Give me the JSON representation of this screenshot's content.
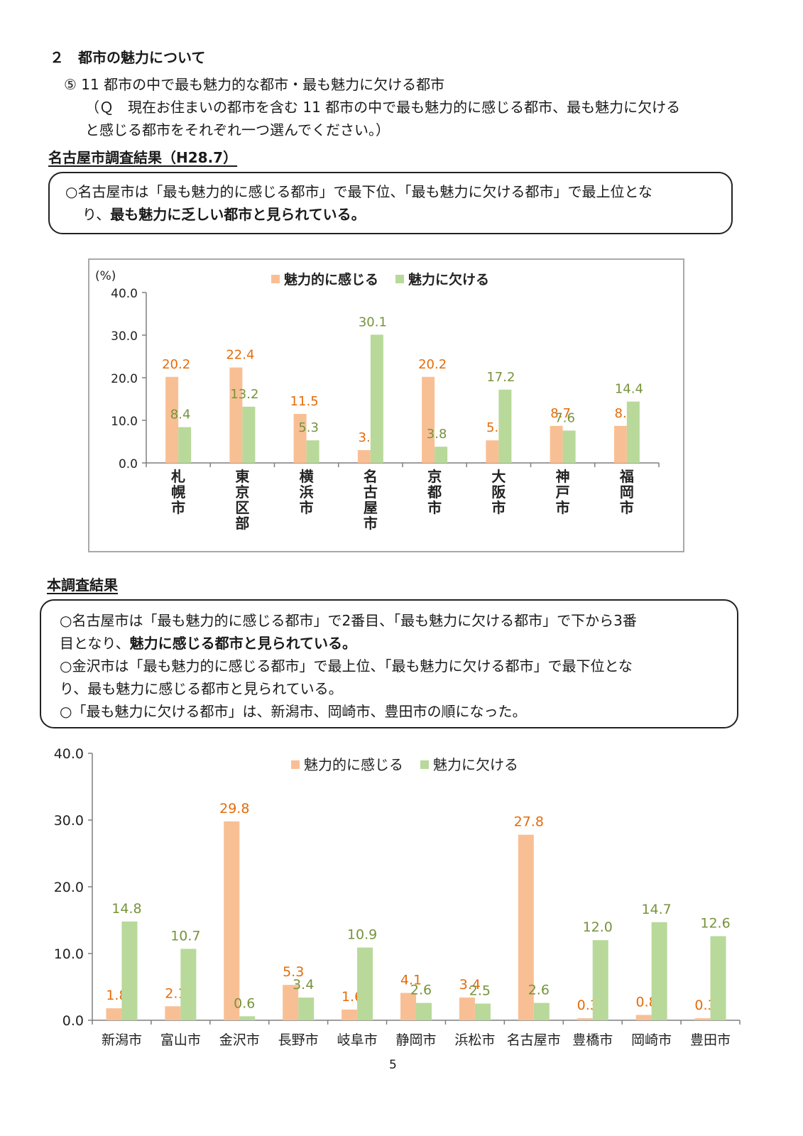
{
  "section": {
    "heading": "２　都市の魅力について",
    "question_title": "⑤ 11 都市の中で最も魅力的な都市・最も魅力に欠ける都市",
    "question_line1": "（Ｑ　現在お住まいの都市を含む 11 都市の中で最も魅力的に感じる都市、最も魅力に欠ける",
    "question_line2": "と感じる都市をそれぞれ一つ選んでください。）"
  },
  "nagoya_survey": {
    "title": "名古屋市調査結果（H28.7）",
    "summary_line1": "○名古屋市は「最も魅力的に感じる都市」で最下位、「最も魅力に欠ける都市」で最上位とな",
    "summary_line2_prefix": "り、",
    "summary_line2_bold": "最も魅力に乏しい都市と見られている。"
  },
  "this_survey": {
    "title": "本調査結果",
    "line1": "○名古屋市は「最も魅力的に感じる都市」で2番目、「最も魅力に欠ける都市」で下から3番",
    "line2_prefix": "目となり、",
    "line2_bold": "魅力に感じる都市と見られている。",
    "line3": "○金沢市は「最も魅力的に感じる都市」で最上位、「最も魅力に欠ける都市」で最下位とな",
    "line4": "り、最も魅力に感じる都市と見られている。",
    "line5": "○「最も魅力に欠ける都市」は、新潟市、岡崎市、豊田市の順になった。"
  },
  "page_number": "5",
  "colors": {
    "attractive": "#f9bf94",
    "attractive_label": "#e46c0a",
    "lacking": "#b8d99a",
    "lacking_label": "#77933c",
    "axis": "#7f7f7f"
  },
  "chart_data": [
    {
      "type": "bar",
      "unit_label": "(%)",
      "categories": [
        "札幌市",
        "東京区部",
        "横浜市",
        "名古屋市",
        "京都市",
        "大阪市",
        "神戸市",
        "福岡市"
      ],
      "series": [
        {
          "name": "魅力的に感じる",
          "values": [
            20.2,
            22.4,
            11.5,
            3.0,
            20.2,
            5.3,
            8.7,
            8.7
          ]
        },
        {
          "name": "魅力に欠ける",
          "values": [
            8.4,
            13.2,
            5.3,
            30.1,
            3.8,
            17.2,
            7.6,
            14.4
          ]
        }
      ],
      "yticks": [
        "0.0",
        "10.0",
        "20.0",
        "30.0",
        "40.0"
      ],
      "ylim": [
        0,
        40
      ],
      "legend": "top",
      "grid": false
    },
    {
      "type": "bar",
      "categories": [
        "新潟市",
        "富山市",
        "金沢市",
        "長野市",
        "岐阜市",
        "静岡市",
        "浜松市",
        "名古屋市",
        "豊橋市",
        "岡崎市",
        "豊田市"
      ],
      "series": [
        {
          "name": "魅力的に感じる",
          "values": [
            1.8,
            2.1,
            29.8,
            5.3,
            1.6,
            4.1,
            3.4,
            27.8,
            0.3,
            0.8,
            0.3
          ]
        },
        {
          "name": "魅力に欠ける",
          "values": [
            14.8,
            10.7,
            0.6,
            3.4,
            10.9,
            2.6,
            2.5,
            2.6,
            12.0,
            14.7,
            12.6
          ]
        }
      ],
      "yticks": [
        "0.0",
        "10.0",
        "20.0",
        "30.0",
        "40.0"
      ],
      "ylim": [
        0,
        40
      ],
      "legend": "top",
      "grid": false
    }
  ]
}
